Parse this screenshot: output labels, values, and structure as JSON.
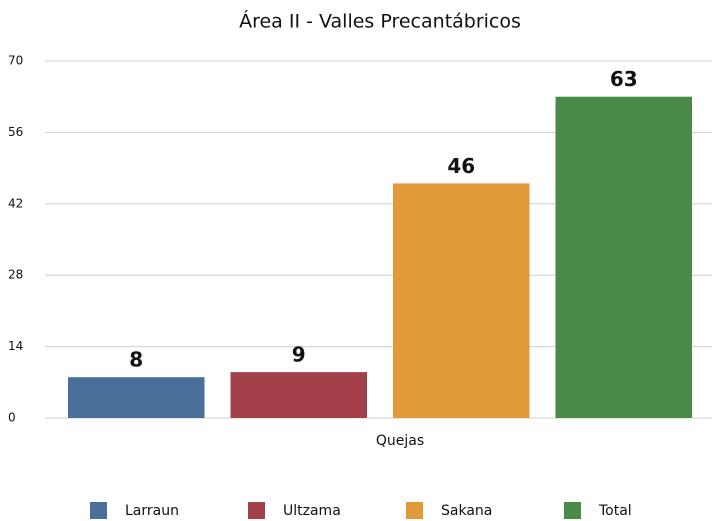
{
  "chart_data": {
    "type": "bar",
    "title": "Área II - Valles Precantábricos",
    "categories": [
      "Quejas"
    ],
    "series": [
      {
        "name": "Larraun",
        "color": "#4a6f9a",
        "values": [
          8
        ]
      },
      {
        "name": "Ultzama",
        "color": "#a4404a",
        "values": [
          9
        ]
      },
      {
        "name": "Sakana",
        "color": "#e09a3a",
        "values": [
          46
        ]
      },
      {
        "name": "Total",
        "color": "#4a8a48",
        "values": [
          63
        ]
      }
    ],
    "ylim": [
      0,
      70
    ],
    "yticks": [
      0,
      14,
      28,
      42,
      56,
      70
    ],
    "grid": true,
    "legend": "bottom"
  }
}
